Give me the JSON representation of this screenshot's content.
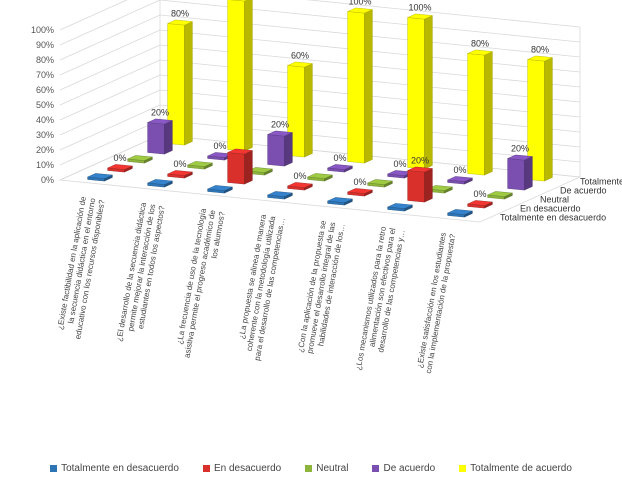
{
  "chart_data": {
    "type": "bar",
    "subtype": "3d-column",
    "title": "",
    "xlabel": "",
    "ylabel": "",
    "ylim": [
      0,
      100
    ],
    "y_ticks": [
      "0%",
      "10%",
      "20%",
      "30%",
      "40%",
      "50%",
      "60%",
      "70%",
      "80%",
      "90%",
      "100%"
    ],
    "categories": [
      "¿Existe factibilidad en la aplicación de la secuencia didáctica en el entorno educativo con los recursos disponibles?",
      "¿El desarrollo de la secuencia didáctica permite mejorar la interacción de los estudiantes en todos los aspectos?",
      "¿La frecuencia de uso de la tecnología asistiva permite el progreso académico de los alumnos?",
      "¿La propuesta se alinea de manera coherente con la metodología utilizada para el desarrollo de las competencias…",
      "¿Con la aplicación de la propuesta se promueve el desarrollo integral de las habilidades de interacción de los…",
      "¿Los mecanismos utilizados para la retro alimentación son efectivos para el desarrollo de las competencias y…",
      "¿Existe satisfacción en los estudiantes con la implementación de la propuesta?"
    ],
    "series": [
      {
        "name": "Totalmente en desacuerdo",
        "color": "#2e75b6",
        "values": [
          0,
          0,
          0,
          0,
          0,
          0,
          0
        ]
      },
      {
        "name": "En desacuerdo",
        "color": "#d9302c",
        "values": [
          0,
          0,
          20,
          0,
          0,
          20,
          0
        ]
      },
      {
        "name": "Neutral",
        "color": "#8db53c",
        "values": [
          0,
          0,
          0,
          0,
          0,
          0,
          0
        ]
      },
      {
        "name": "De acuerdo",
        "color": "#7a4fb0",
        "values": [
          20,
          0,
          20,
          0,
          0,
          0,
          20
        ]
      },
      {
        "name": "Totalmente de acuerdo",
        "color": "#ffff00",
        "values": [
          80,
          100,
          60,
          100,
          100,
          80,
          80
        ]
      }
    ],
    "data_labels": [
      [
        "",
        "",
        "",
        "",
        "",
        "",
        ""
      ],
      [
        "0%",
        "0%",
        "",
        "0%",
        "0%",
        "20%",
        "0%"
      ],
      [
        "",
        "",
        "",
        "",
        "",
        "",
        ""
      ],
      [
        "20%",
        "0%",
        "20%",
        "0%",
        "0%",
        "0%",
        "20%"
      ],
      [
        "80%",
        "100%",
        "60%",
        "100%",
        "100%",
        "80%",
        "80%"
      ]
    ],
    "grid": true,
    "legend_position": "bottom"
  }
}
